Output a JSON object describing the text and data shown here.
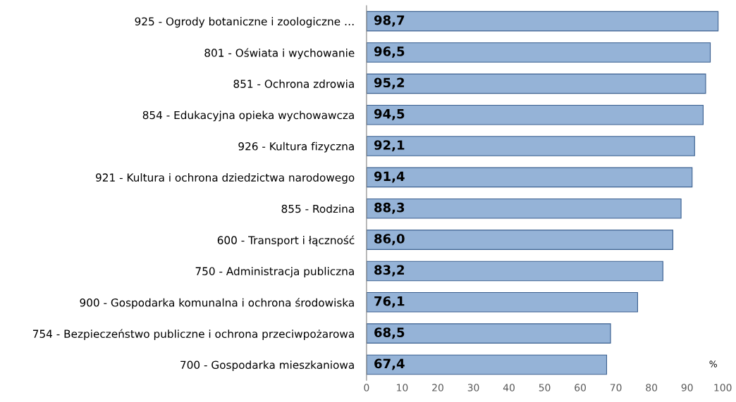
{
  "chart_data": {
    "type": "bar",
    "orientation": "horizontal",
    "categories": [
      "925 - Ogrody botaniczne i zoologiczne …",
      "801 - Oświata i wychowanie",
      "851 - Ochrona zdrowia",
      "854 - Edukacyjna opieka wychowawcza",
      "926 - Kultura fizyczna",
      "921 - Kultura i ochrona dziedzictwa narodowego",
      "855 - Rodzina",
      "600 - Transport i łączność",
      "750 - Administracja publiczna",
      "900 - Gospodarka komunalna i ochrona środowiska",
      "754 - Bezpieczeństwo publiczne i ochrona przeciwpożarowa",
      "700 - Gospodarka mieszkaniowa"
    ],
    "values": [
      98.7,
      96.5,
      95.2,
      94.5,
      92.1,
      91.4,
      88.3,
      86.0,
      83.2,
      76.1,
      68.5,
      67.4
    ],
    "value_labels": [
      "98,7",
      "96,5",
      "95,2",
      "94,5",
      "92,1",
      "91,4",
      "88,3",
      "86,0",
      "83,2",
      "76,1",
      "68,5",
      "67,4"
    ],
    "color": "#95b3d7",
    "xlim": [
      0,
      100
    ],
    "xticks": [
      0,
      10,
      20,
      30,
      40,
      50,
      60,
      70,
      80,
      90,
      100
    ],
    "grid": false,
    "legend": false,
    "annotations": [
      "%"
    ]
  }
}
